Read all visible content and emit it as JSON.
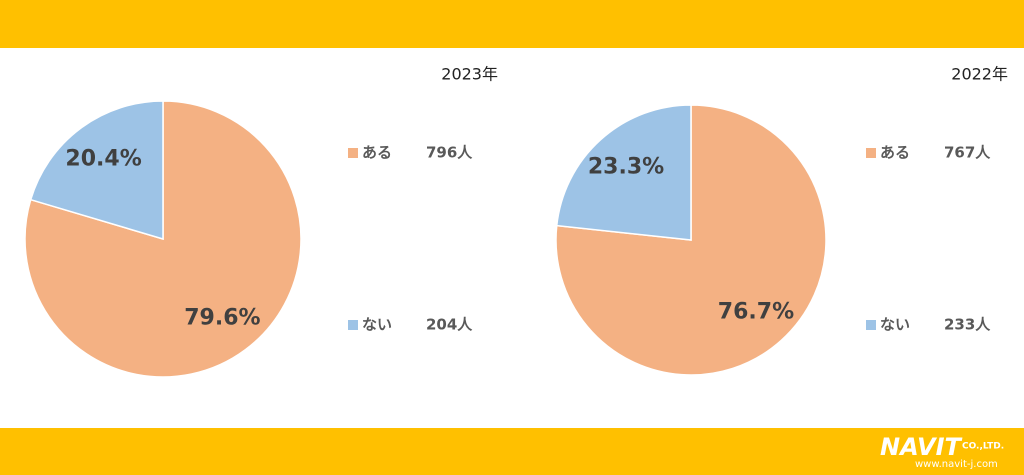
{
  "chart_data": [
    {
      "type": "pie",
      "title": "2023年",
      "categories": [
        "ある",
        "ない"
      ],
      "values": [
        79.6,
        20.4
      ],
      "value_labels": [
        "79.6%",
        "20.4%"
      ],
      "counts": [
        796,
        204
      ],
      "count_labels": [
        "796人",
        "204人"
      ],
      "colors": [
        "#F4B183",
        "#9DC3E6"
      ]
    },
    {
      "type": "pie",
      "title": "2022年",
      "categories": [
        "ある",
        "ない"
      ],
      "values": [
        76.7,
        23.3
      ],
      "value_labels": [
        "76.7%",
        "23.3%"
      ],
      "counts": [
        767,
        233
      ],
      "count_labels": [
        "767人",
        "233人"
      ],
      "colors": [
        "#F4B183",
        "#9DC3E6"
      ]
    }
  ],
  "footer": {
    "logo": "NAVIT",
    "company": "CO.,LTD.",
    "url": "www.navit-j.com"
  }
}
